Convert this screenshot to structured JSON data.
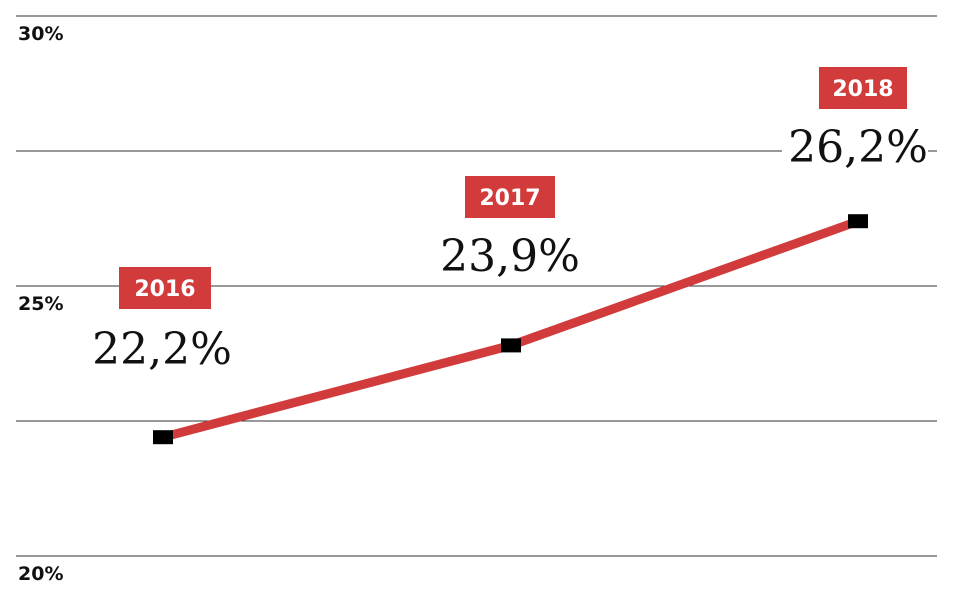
{
  "chart_data": {
    "type": "line",
    "title": "",
    "xlabel": "",
    "ylabel": "",
    "categories": [
      "2016",
      "2017",
      "2018"
    ],
    "series": [
      {
        "values": [
          22.2,
          23.9,
          26.2
        ],
        "color": "#d23b3b"
      }
    ],
    "data_labels": [
      "22,2%",
      "23,9%",
      "26,2%"
    ],
    "ylim": [
      20,
      30
    ],
    "yticks": [
      20,
      25,
      30
    ],
    "ytick_labels": [
      "20%",
      "25%",
      "30%"
    ],
    "grid": true,
    "gridline_values": [
      20,
      22.5,
      25,
      27.5,
      30
    ],
    "marker": "square",
    "marker_color": "#000000",
    "label_badge_color": "#d23b3b"
  }
}
